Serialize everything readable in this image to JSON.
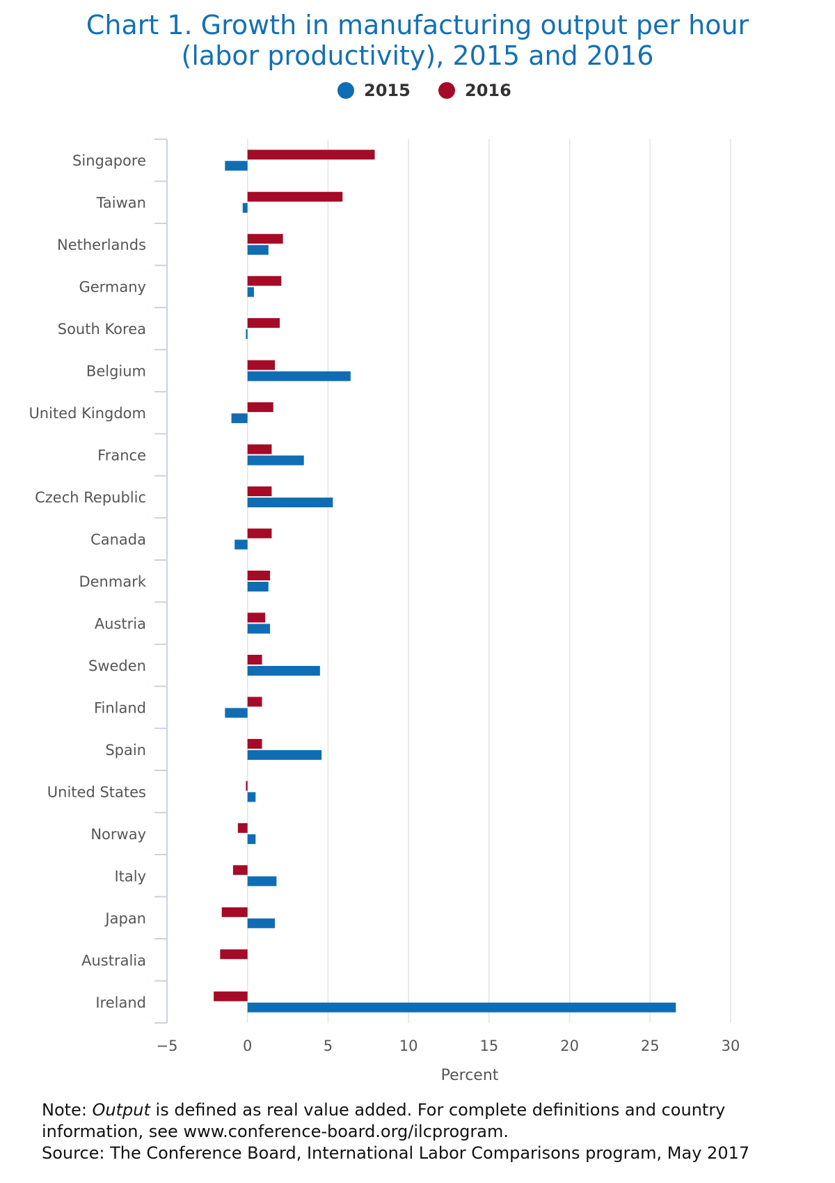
{
  "title": "Chart 1. Growth in manufacturing output per hour (labor productivity), 2015 and 2016",
  "chart_data": {
    "type": "bar",
    "orientation": "horizontal",
    "title": "Chart 1. Growth in manufacturing output per hour (labor productivity), 2015 and 2016",
    "xlabel": "Percent",
    "ylabel": "",
    "xlim": [
      -5,
      30
    ],
    "xticks": [
      -5,
      0,
      5,
      10,
      15,
      20,
      25,
      30
    ],
    "grid": true,
    "legend_position": "top-center",
    "categories": [
      "Singapore",
      "Taiwan",
      "Netherlands",
      "Germany",
      "South Korea",
      "Belgium",
      "United Kingdom",
      "France",
      "Czech Republic",
      "Canada",
      "Denmark",
      "Austria",
      "Sweden",
      "Finland",
      "Spain",
      "United States",
      "Norway",
      "Italy",
      "Japan",
      "Australia",
      "Ireland"
    ],
    "series": [
      {
        "name": "2015",
        "color": "#0f6db4",
        "values": [
          -1.4,
          -0.3,
          1.3,
          0.4,
          -0.1,
          6.4,
          -1.0,
          3.5,
          5.3,
          -0.8,
          1.3,
          1.4,
          4.5,
          -1.4,
          4.6,
          0.5,
          0.5,
          1.8,
          1.7,
          0.0,
          26.6
        ]
      },
      {
        "name": "2016",
        "color": "#a50a27",
        "values": [
          7.9,
          5.9,
          2.2,
          2.1,
          2.0,
          1.7,
          1.6,
          1.5,
          1.5,
          1.5,
          1.4,
          1.1,
          0.9,
          0.9,
          0.9,
          -0.1,
          -0.6,
          -0.9,
          -1.6,
          -1.7,
          -2.1
        ]
      }
    ]
  },
  "note": {
    "prefix": "Note: ",
    "term": "Output",
    "text": " is defined as real value added. For complete definitions and country information, see www.conference-board.org/ilcprogram.",
    "source": "Source: The Conference Board, International Labor Comparisons program, May 2017"
  }
}
